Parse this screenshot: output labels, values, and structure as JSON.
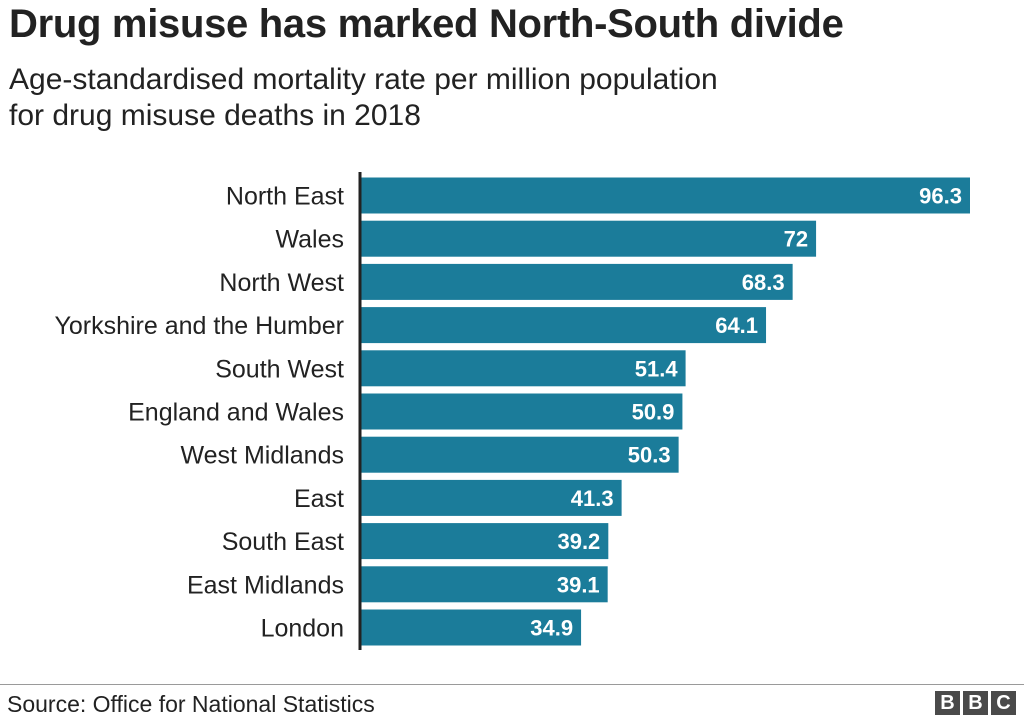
{
  "title": "Drug misuse has marked North-South divide",
  "subtitle": [
    "Age-standardised mortality rate per million population",
    "for drug misuse deaths in 2018"
  ],
  "source": "Source: Office for National Statistics",
  "logo": [
    "B",
    "B",
    "C"
  ],
  "colors": {
    "bar": "#1b7c9a",
    "axis": "#222222",
    "label_text": "#222222",
    "value_text": "#ffffff"
  },
  "chart_data": {
    "type": "bar",
    "orientation": "horizontal",
    "title": "Drug misuse has marked North-South divide",
    "subtitle": "Age-standardised mortality rate per million population for drug misuse deaths in 2018",
    "categories": [
      "North East",
      "Wales",
      "North West",
      "Yorkshire and the Humber",
      "South West",
      "England and Wales",
      "West Midlands",
      "East",
      "South East",
      "East Midlands",
      "London"
    ],
    "values": [
      96.3,
      72,
      68.3,
      64.1,
      51.4,
      50.9,
      50.3,
      41.3,
      39.2,
      39.1,
      34.9
    ],
    "value_labels": [
      "96.3",
      "72",
      "68.3",
      "64.1",
      "51.4",
      "50.9",
      "50.3",
      "41.3",
      "39.2",
      "39.1",
      "34.9"
    ],
    "xlim": [
      0,
      96.3
    ],
    "grid": false,
    "data_labels": "inside-end"
  }
}
